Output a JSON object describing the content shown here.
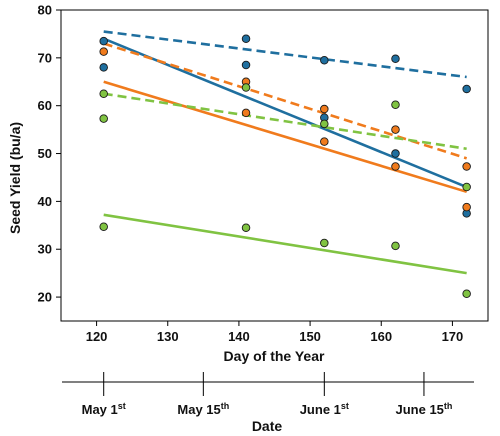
{
  "chart_data": {
    "type": "scatter",
    "title": "",
    "xlabel": "Day of the Year",
    "ylabel": "Seed Yield (bu/a)",
    "xlim": [
      115,
      175
    ],
    "ylim": [
      15,
      80
    ],
    "xticks": [
      120,
      130,
      140,
      150,
      160,
      170
    ],
    "yticks": [
      20,
      30,
      40,
      50,
      60,
      70,
      80
    ],
    "grid": false,
    "colors": {
      "blue": "#1f6f9f",
      "orange": "#f07b1d",
      "green": "#80c342"
    },
    "series": [
      {
        "color": "blue",
        "points": [
          [
            121,
            73.5
          ],
          [
            121,
            68
          ],
          [
            141,
            74
          ],
          [
            141,
            68.5
          ],
          [
            152,
            69.5
          ],
          [
            152,
            57.5
          ],
          [
            162,
            69.8
          ],
          [
            162,
            50
          ],
          [
            172,
            63.5
          ],
          [
            172,
            37.5
          ]
        ],
        "fits": [
          {
            "style": "solid",
            "from": [
              121,
              74
            ],
            "to": [
              172,
              43
            ]
          },
          {
            "style": "dashed",
            "from": [
              121,
              75.5
            ],
            "to": [
              172,
              66
            ]
          }
        ]
      },
      {
        "color": "orange",
        "points": [
          [
            121,
            71.3
          ],
          [
            141,
            65
          ],
          [
            141,
            58.5
          ],
          [
            152,
            59.3
          ],
          [
            152,
            52.5
          ],
          [
            162,
            55
          ],
          [
            162,
            47.3
          ],
          [
            172,
            47.3
          ],
          [
            172,
            38.8
          ]
        ],
        "fits": [
          {
            "style": "solid",
            "from": [
              121,
              65
            ],
            "to": [
              172,
              42
            ]
          },
          {
            "style": "dashed",
            "from": [
              121,
              73
            ],
            "to": [
              172,
              49
            ]
          }
        ]
      },
      {
        "color": "green",
        "points": [
          [
            121,
            62.5
          ],
          [
            121,
            57.3
          ],
          [
            121,
            34.7
          ],
          [
            141,
            63.8
          ],
          [
            141,
            34.5
          ],
          [
            152,
            56.2
          ],
          [
            152,
            31.3
          ],
          [
            162,
            60.2
          ],
          [
            162,
            30.7
          ],
          [
            172,
            43
          ],
          [
            172,
            20.7
          ]
        ],
        "fits": [
          {
            "style": "solid",
            "from": [
              121,
              37.2
            ],
            "to": [
              172,
              25
            ]
          },
          {
            "style": "dashed",
            "from": [
              121,
              62.5
            ],
            "to": [
              172,
              51
            ]
          }
        ]
      }
    ],
    "date_axis": {
      "label": "Date",
      "ticks": [
        {
          "day": 121,
          "main": "May 1",
          "sup": "st"
        },
        {
          "day": 135,
          "main": "May 15",
          "sup": "th"
        },
        {
          "day": 152,
          "main": "June 1",
          "sup": "st"
        },
        {
          "day": 166,
          "main": "June 15",
          "sup": "th"
        }
      ]
    }
  }
}
